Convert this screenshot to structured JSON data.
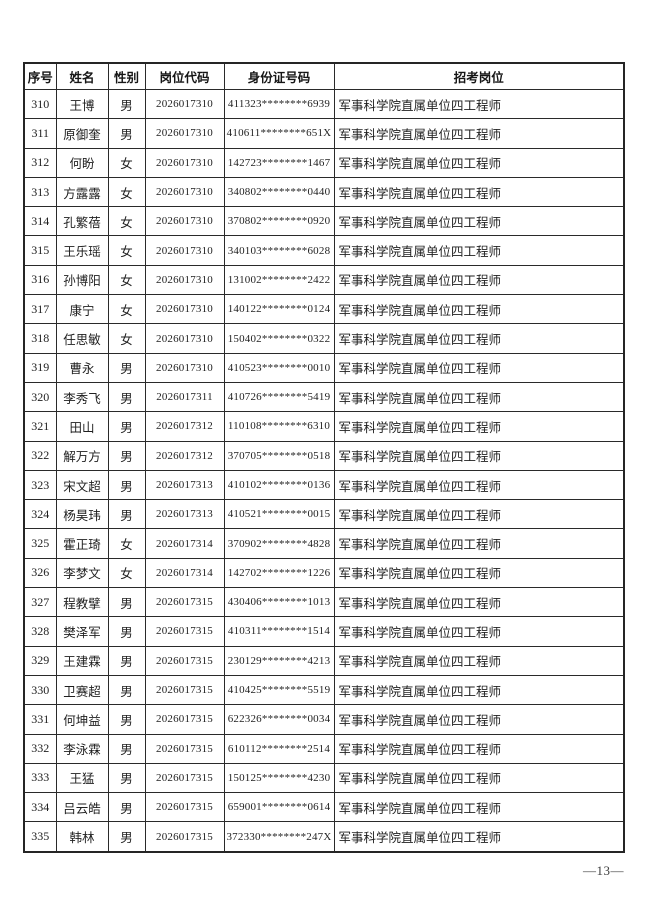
{
  "document": {
    "page_number": "—13—"
  },
  "table": {
    "headers": [
      "序号",
      "姓名",
      "性别",
      "岗位代码",
      "身份证号码",
      "招考岗位"
    ],
    "rows": [
      {
        "index": "310",
        "name": "王博",
        "gender": "男",
        "position_code": "2026017310",
        "id_number": "411323********6939",
        "position_title": "军事科学院直属单位四工程师"
      },
      {
        "index": "311",
        "name": "原御奎",
        "gender": "男",
        "position_code": "2026017310",
        "id_number": "410611********651X",
        "position_title": "军事科学院直属单位四工程师"
      },
      {
        "index": "312",
        "name": "何盼",
        "gender": "女",
        "position_code": "2026017310",
        "id_number": "142723********1467",
        "position_title": "军事科学院直属单位四工程师"
      },
      {
        "index": "313",
        "name": "方露露",
        "gender": "女",
        "position_code": "2026017310",
        "id_number": "340802********0440",
        "position_title": "军事科学院直属单位四工程师"
      },
      {
        "index": "314",
        "name": "孔繁蓓",
        "gender": "女",
        "position_code": "2026017310",
        "id_number": "370802********0920",
        "position_title": "军事科学院直属单位四工程师"
      },
      {
        "index": "315",
        "name": "王乐瑶",
        "gender": "女",
        "position_code": "2026017310",
        "id_number": "340103********6028",
        "position_title": "军事科学院直属单位四工程师"
      },
      {
        "index": "316",
        "name": "孙博阳",
        "gender": "女",
        "position_code": "2026017310",
        "id_number": "131002********2422",
        "position_title": "军事科学院直属单位四工程师"
      },
      {
        "index": "317",
        "name": "康宁",
        "gender": "女",
        "position_code": "2026017310",
        "id_number": "140122********0124",
        "position_title": "军事科学院直属单位四工程师"
      },
      {
        "index": "318",
        "name": "任思敏",
        "gender": "女",
        "position_code": "2026017310",
        "id_number": "150402********0322",
        "position_title": "军事科学院直属单位四工程师"
      },
      {
        "index": "319",
        "name": "曹永",
        "gender": "男",
        "position_code": "2026017310",
        "id_number": "410523********0010",
        "position_title": "军事科学院直属单位四工程师"
      },
      {
        "index": "320",
        "name": "李秀飞",
        "gender": "男",
        "position_code": "2026017311",
        "id_number": "410726********5419",
        "position_title": "军事科学院直属单位四工程师"
      },
      {
        "index": "321",
        "name": "田山",
        "gender": "男",
        "position_code": "2026017312",
        "id_number": "110108********6310",
        "position_title": "军事科学院直属单位四工程师"
      },
      {
        "index": "322",
        "name": "解万方",
        "gender": "男",
        "position_code": "2026017312",
        "id_number": "370705********0518",
        "position_title": "军事科学院直属单位四工程师"
      },
      {
        "index": "323",
        "name": "宋文超",
        "gender": "男",
        "position_code": "2026017313",
        "id_number": "410102********0136",
        "position_title": "军事科学院直属单位四工程师"
      },
      {
        "index": "324",
        "name": "杨昊玮",
        "gender": "男",
        "position_code": "2026017313",
        "id_number": "410521********0015",
        "position_title": "军事科学院直属单位四工程师"
      },
      {
        "index": "325",
        "name": "霍正琦",
        "gender": "女",
        "position_code": "2026017314",
        "id_number": "370902********4828",
        "position_title": "军事科学院直属单位四工程师"
      },
      {
        "index": "326",
        "name": "李梦文",
        "gender": "女",
        "position_code": "2026017314",
        "id_number": "142702********1226",
        "position_title": "军事科学院直属单位四工程师"
      },
      {
        "index": "327",
        "name": "程教擘",
        "gender": "男",
        "position_code": "2026017315",
        "id_number": "430406********1013",
        "position_title": "军事科学院直属单位四工程师"
      },
      {
        "index": "328",
        "name": "樊泽军",
        "gender": "男",
        "position_code": "2026017315",
        "id_number": "410311********1514",
        "position_title": "军事科学院直属单位四工程师"
      },
      {
        "index": "329",
        "name": "王建霖",
        "gender": "男",
        "position_code": "2026017315",
        "id_number": "230129********4213",
        "position_title": "军事科学院直属单位四工程师"
      },
      {
        "index": "330",
        "name": "卫赛超",
        "gender": "男",
        "position_code": "2026017315",
        "id_number": "410425********5519",
        "position_title": "军事科学院直属单位四工程师"
      },
      {
        "index": "331",
        "name": "何坤益",
        "gender": "男",
        "position_code": "2026017315",
        "id_number": "622326********0034",
        "position_title": "军事科学院直属单位四工程师"
      },
      {
        "index": "332",
        "name": "李泳霖",
        "gender": "男",
        "position_code": "2026017315",
        "id_number": "610112********2514",
        "position_title": "军事科学院直属单位四工程师"
      },
      {
        "index": "333",
        "name": "王猛",
        "gender": "男",
        "position_code": "2026017315",
        "id_number": "150125********4230",
        "position_title": "军事科学院直属单位四工程师"
      },
      {
        "index": "334",
        "name": "吕云皓",
        "gender": "男",
        "position_code": "2026017315",
        "id_number": "659001********0614",
        "position_title": "军事科学院直属单位四工程师"
      },
      {
        "index": "335",
        "name": "韩林",
        "gender": "男",
        "position_code": "2026017315",
        "id_number": "372330********247X",
        "position_title": "军事科学院直属单位四工程师"
      }
    ]
  }
}
